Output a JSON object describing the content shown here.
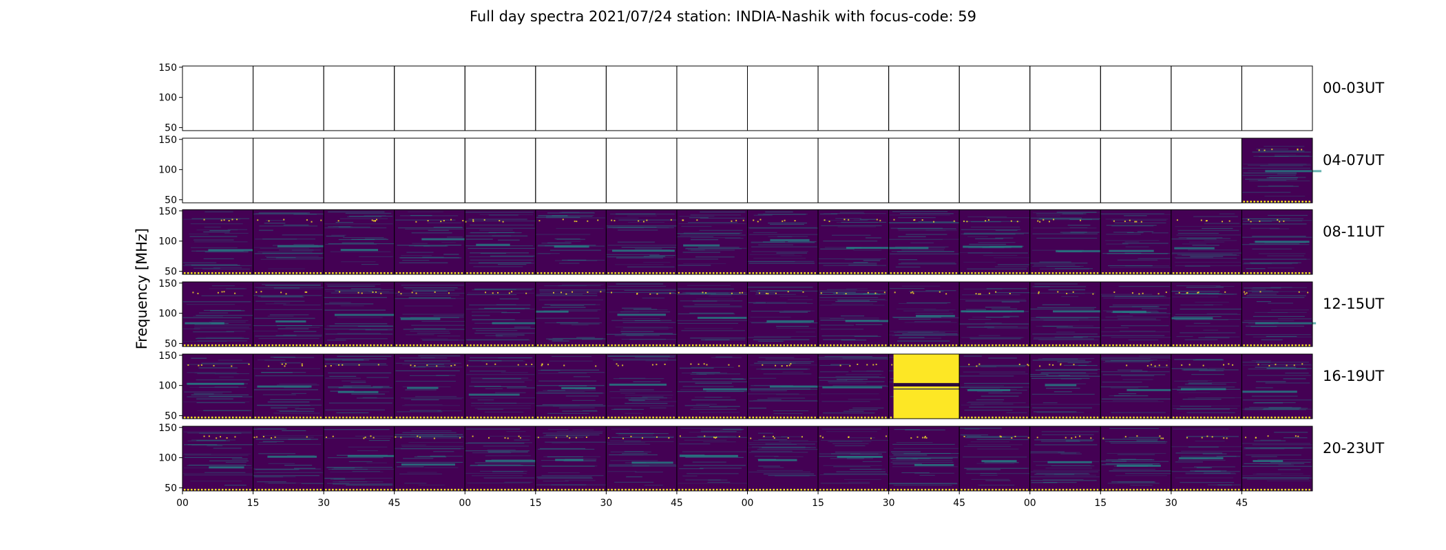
{
  "title": "Full day spectra 2021/07/24 station: INDIA-Nashik with focus-code: 59",
  "chart_data": {
    "type": "heatmap",
    "title": "Full day spectra 2021/07/24 station: INDIA-Nashik with focus-code: 59",
    "ylabel": "Frequency [MHz]",
    "xlabel": "",
    "ylim": [
      45,
      152
    ],
    "y_ticks": [
      50,
      100,
      150
    ],
    "x_tick_labels": [
      "00",
      "15",
      "30",
      "45",
      "00",
      "15",
      "30",
      "45",
      "00",
      "15",
      "30",
      "45",
      "00",
      "15",
      "30",
      "45"
    ],
    "rows": [
      {
        "label": "00-03UT",
        "panels": [
          "empty",
          "empty",
          "empty",
          "empty",
          "empty",
          "empty",
          "empty",
          "empty",
          "empty",
          "empty",
          "empty",
          "empty",
          "empty",
          "empty",
          "empty",
          "empty"
        ]
      },
      {
        "label": "04-07UT",
        "panels": [
          "empty",
          "empty",
          "empty",
          "empty",
          "empty",
          "empty",
          "empty",
          "empty",
          "empty",
          "empty",
          "empty",
          "empty",
          "empty",
          "empty",
          "empty",
          "data"
        ]
      },
      {
        "label": "08-11UT",
        "panels": [
          "data",
          "data",
          "data",
          "data",
          "data",
          "data",
          "data",
          "data",
          "data",
          "data",
          "data",
          "data",
          "data",
          "data",
          "data",
          "data"
        ]
      },
      {
        "label": "12-15UT",
        "panels": [
          "data",
          "data",
          "data",
          "data",
          "data",
          "data",
          "data",
          "data",
          "data",
          "data",
          "data",
          "data",
          "data",
          "data",
          "data",
          "data"
        ]
      },
      {
        "label": "16-19UT",
        "panels": [
          "data",
          "data",
          "data",
          "data",
          "data",
          "data",
          "data",
          "data",
          "data",
          "data",
          "saturated",
          "data",
          "data",
          "data",
          "data",
          "data"
        ]
      },
      {
        "label": "20-23UT",
        "panels": [
          "data",
          "data",
          "data",
          "data",
          "data",
          "data",
          "data",
          "data",
          "data",
          "data",
          "data",
          "data",
          "data",
          "data",
          "data",
          "data"
        ]
      }
    ],
    "colormap": {
      "low": "#440154",
      "mid": "#21918c",
      "high": "#fde725"
    },
    "grid": false
  }
}
